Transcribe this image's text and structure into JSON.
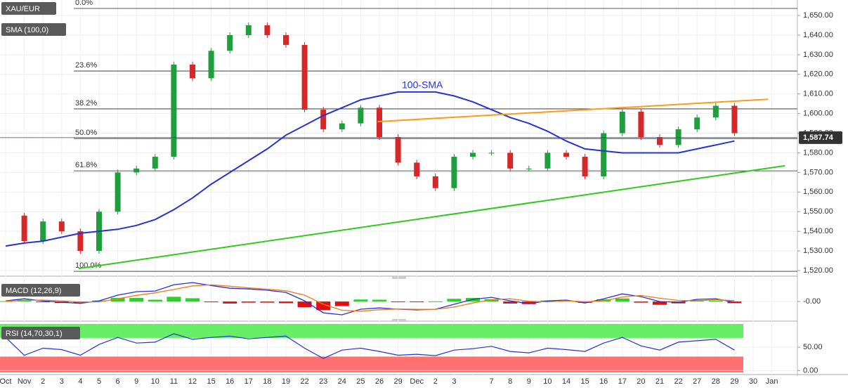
{
  "chart_data": [
    {
      "type": "candlestick",
      "symbol": "XAU/EUR",
      "categories": [
        "Oct",
        "Nov",
        "2",
        "3",
        "4",
        "5",
        "6",
        "9",
        "10",
        "11",
        "12",
        "15",
        "16",
        "17",
        "18",
        "19",
        "22",
        "23",
        "24",
        "25",
        "26",
        "29",
        "Dec",
        "2",
        "3",
        null,
        "7",
        "8",
        "9",
        "10",
        "14",
        "15",
        "16",
        "17",
        "20",
        "21",
        "22",
        "27",
        "28",
        "29",
        "30",
        "Jan"
      ],
      "values": [
        1548,
        1535,
        1545,
        1540,
        1530,
        1550,
        1570,
        1572,
        1578,
        1625,
        1618,
        1632,
        1640,
        1645,
        1640,
        1635,
        1602,
        1592,
        1595,
        1603,
        1588,
        1575,
        1568,
        1562,
        1578,
        1580,
        1580,
        1572,
        1572,
        1580,
        1578,
        1568,
        1590,
        1601,
        1588,
        1584,
        1592,
        1598,
        1604,
        1590,
        null,
        null
      ],
      "up_color": "#1f9e3d",
      "down_color": "#d62828",
      "sma": {
        "label": "SMA (100,0)",
        "annotation": "100-SMA",
        "color": "#2433d8",
        "values": [
          1532.5,
          1534,
          1535,
          1537,
          1539,
          1540,
          1541,
          1543,
          1546,
          1551,
          1557,
          1564,
          1570,
          1576,
          1582,
          1589,
          1594,
          1599,
          1603,
          1607,
          1609,
          1611,
          1611,
          1611,
          1609,
          1606,
          1602,
          1598,
          1595,
          1591,
          1586,
          1582,
          1581,
          1580,
          1580,
          1580,
          1580,
          1582,
          1584,
          1586,
          null,
          null
        ]
      },
      "fib_levels": [
        {
          "label": "0.0%",
          "value": 1653.6
        },
        {
          "label": "23.6%",
          "value": 1621.7
        },
        {
          "label": "38.2%",
          "value": 1602.4
        },
        {
          "label": "50.0%",
          "value": 1587.3
        },
        {
          "label": "61.8%",
          "value": 1570.8
        },
        {
          "label": "100.0%",
          "value": 1519.6
        }
      ],
      "trendlines": [
        {
          "color": "#ff9a1a",
          "x": [
            19.9,
            40.8
          ],
          "values": [
            1595.9,
            1607.3
          ]
        },
        {
          "color": "#2ecc1a",
          "x": [
            3.9,
            41.7
          ],
          "values": [
            1521,
            1573.4
          ]
        }
      ],
      "last_price": {
        "value": 1587.74,
        "label": "1,587.74"
      },
      "ylim": [
        1518.2,
        1657.9
      ],
      "yticks": [
        {
          "value": 1520,
          "label": "1,520.00"
        },
        {
          "value": 1530,
          "label": "1,530.00"
        },
        {
          "value": 1540,
          "label": "1,540.00"
        },
        {
          "value": 1550,
          "label": "1,550.00"
        },
        {
          "value": 1560,
          "label": "1,560.00"
        },
        {
          "value": 1570,
          "label": "1,570.00"
        },
        {
          "value": 1580,
          "label": "1,580.00"
        },
        {
          "value": 1590,
          "label": "1,590.00"
        },
        {
          "value": 1600,
          "label": "1,600.00"
        },
        {
          "value": 1610,
          "label": "1,610.00"
        },
        {
          "value": 1620,
          "label": "1,620.00"
        },
        {
          "value": 1630,
          "label": "1,630.00"
        },
        {
          "value": 1640,
          "label": "1,640.00"
        },
        {
          "value": 1650,
          "label": "1,650.00"
        }
      ]
    },
    {
      "type": "macd",
      "label": "MACD (12,26,9)",
      "ylim": [
        -10,
        12
      ],
      "yticks": [
        {
          "value": 0,
          "label": "-0.00"
        }
      ],
      "macd": {
        "color": "#2433d8",
        "values": [
          0.4,
          1.5,
          0.4,
          -0.4,
          -1,
          0.4,
          3.5,
          5.4,
          5.8,
          9.2,
          10.4,
          8.8,
          7.3,
          6.9,
          6.2,
          5,
          0.4,
          -6.2,
          -7.3,
          -4.2,
          -3.5,
          -4.2,
          -4.6,
          -4.2,
          -1.5,
          1.2,
          2.3,
          0.4,
          -1.2,
          0.4,
          0.8,
          -0.8,
          1.5,
          4.2,
          2.7,
          0,
          -0.4,
          1.2,
          1.5,
          -0.4
        ]
      },
      "signal": {
        "color": "#f07c1a",
        "values": [
          0.2,
          0.6,
          0.8,
          0.4,
          -0.3,
          -0.2,
          1.5,
          3.4,
          4.8,
          6.6,
          8.6,
          9.2,
          8.4,
          7.5,
          6.8,
          5.9,
          3.5,
          -1.5,
          -4.8,
          -5.3,
          -4.5,
          -4.1,
          -4.3,
          -4.3,
          -3,
          -0.8,
          1,
          1.5,
          0.2,
          -0.2,
          0.4,
          -0.1,
          0.3,
          2.5,
          3.3,
          1.8,
          0.6,
          0.4,
          1,
          0.5
        ]
      },
      "histogram": {
        "up_color": "#33cc33",
        "down_color": "#e01010",
        "values": [
          0.2,
          0.9,
          -0.4,
          -0.8,
          -0.7,
          0.6,
          2,
          2,
          1,
          2.6,
          1.8,
          -0.4,
          -1.1,
          -0.6,
          -0.6,
          -0.9,
          -3.1,
          -4.7,
          -2.5,
          1.1,
          1,
          -0.1,
          -0.3,
          0.1,
          1.5,
          2,
          1.3,
          -1.1,
          -1.4,
          0.6,
          0.4,
          -0.7,
          1.2,
          1.7,
          -0.6,
          -1.8,
          -1,
          0.8,
          0.5,
          -0.9
        ]
      }
    },
    {
      "type": "rsi",
      "label": "RSI (14,70,30,1)",
      "ylim": [
        -4,
        100
      ],
      "yticks": [
        {
          "value": 0,
          "label": "0.00"
        },
        {
          "value": 50,
          "label": "50.00"
        }
      ],
      "overbought": 70,
      "oversold": 30,
      "overbought_color": "#66ee66",
      "oversold_color": "#ff7070",
      "color": "#2433d8",
      "values": [
        71,
        33,
        48,
        45,
        33,
        56,
        71,
        59,
        61,
        79,
        67,
        71,
        74,
        68,
        71,
        74,
        48,
        26,
        44,
        48,
        41,
        33,
        35,
        32,
        44,
        47,
        52,
        41,
        38,
        48,
        45,
        41,
        59,
        71,
        53,
        44,
        61,
        64,
        67,
        44
      ]
    }
  ]
}
